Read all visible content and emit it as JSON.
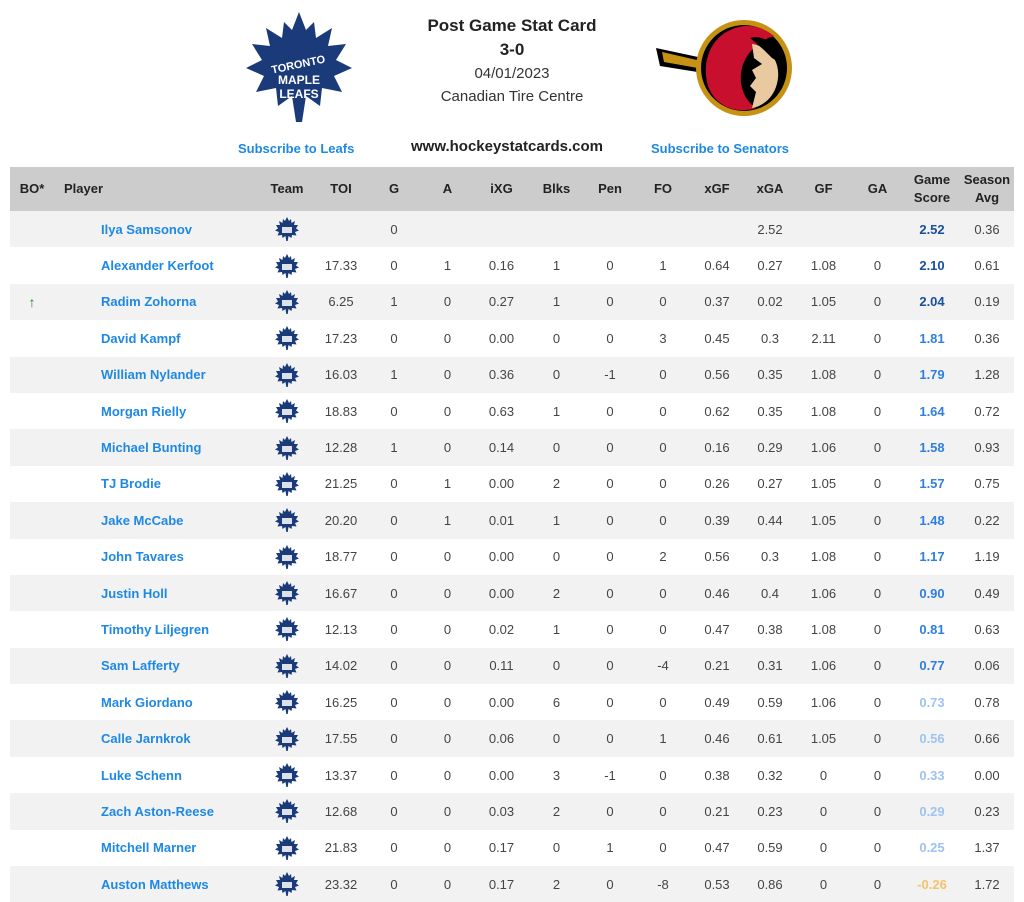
{
  "header": {
    "title": "Post Game Stat Card",
    "score": "3-0",
    "date": "04/01/2023",
    "venue": "Canadian Tire Centre",
    "site": "www.hockeystatcards.com",
    "subscribe_left": "Subscribe to Leafs",
    "subscribe_right": "Subscribe to Senators",
    "logo_left_text": [
      "TORONTO",
      "MAPLE",
      "LEAFS"
    ],
    "logo_left_color": "#1a3a7a",
    "logo_right_colors": [
      "#c8102e",
      "#000000",
      "#c69214"
    ]
  },
  "columns": [
    "BO*",
    "Player",
    "Team",
    "TOI",
    "G",
    "A",
    "iXG",
    "Blks",
    "Pen",
    "FO",
    "xGF",
    "xGA",
    "GF",
    "GA",
    "Game Score",
    "Season Avg"
  ],
  "colors": {
    "header_bg": "#cccccc",
    "link": "#1e88e5",
    "gs_strong": "#1a4fa0",
    "gs_medium": "#2f7fe0",
    "gs_light": "#9ec3f0",
    "gs_negative": "#f5c26b",
    "arrow_up": "#1a8a1a"
  },
  "rows": [
    {
      "bo": "",
      "player": "Ilya Samsonov",
      "team": "maple-leafs-icon",
      "toi": "",
      "g": "0",
      "a": "",
      "ixg": "",
      "blks": "",
      "pen": "",
      "fo": "",
      "xgf": "",
      "xga": "2.52",
      "gf": "",
      "ga": "",
      "gs": "2.52",
      "avg": "0.36",
      "gs_style": "strong"
    },
    {
      "bo": "",
      "player": "Alexander Kerfoot",
      "team": "maple-leafs-icon",
      "toi": "17.33",
      "g": "0",
      "a": "1",
      "ixg": "0.16",
      "blks": "1",
      "pen": "0",
      "fo": "1",
      "xgf": "0.64",
      "xga": "0.27",
      "gf": "1.08",
      "ga": "0",
      "gs": "2.10",
      "avg": "0.61",
      "gs_style": "strong"
    },
    {
      "bo": "↑",
      "player": "Radim Zohorna",
      "team": "maple-leafs-icon",
      "toi": "6.25",
      "g": "1",
      "a": "0",
      "ixg": "0.27",
      "blks": "1",
      "pen": "0",
      "fo": "0",
      "xgf": "0.37",
      "xga": "0.02",
      "gf": "1.05",
      "ga": "0",
      "gs": "2.04",
      "avg": "0.19",
      "gs_style": "strong"
    },
    {
      "bo": "",
      "player": "David Kampf",
      "team": "maple-leafs-icon",
      "toi": "17.23",
      "g": "0",
      "a": "0",
      "ixg": "0.00",
      "blks": "0",
      "pen": "0",
      "fo": "3",
      "xgf": "0.45",
      "xga": "0.3",
      "gf": "2.11",
      "ga": "0",
      "gs": "1.81",
      "avg": "0.36",
      "gs_style": "medium"
    },
    {
      "bo": "",
      "player": "William Nylander",
      "team": "maple-leafs-icon",
      "toi": "16.03",
      "g": "1",
      "a": "0",
      "ixg": "0.36",
      "blks": "0",
      "pen": "-1",
      "fo": "0",
      "xgf": "0.56",
      "xga": "0.35",
      "gf": "1.08",
      "ga": "0",
      "gs": "1.79",
      "avg": "1.28",
      "gs_style": "medium"
    },
    {
      "bo": "",
      "player": "Morgan Rielly",
      "team": "maple-leafs-icon",
      "toi": "18.83",
      "g": "0",
      "a": "0",
      "ixg": "0.63",
      "blks": "1",
      "pen": "0",
      "fo": "0",
      "xgf": "0.62",
      "xga": "0.35",
      "gf": "1.08",
      "ga": "0",
      "gs": "1.64",
      "avg": "0.72",
      "gs_style": "medium"
    },
    {
      "bo": "",
      "player": "Michael Bunting",
      "team": "maple-leafs-icon",
      "toi": "12.28",
      "g": "1",
      "a": "0",
      "ixg": "0.14",
      "blks": "0",
      "pen": "0",
      "fo": "0",
      "xgf": "0.16",
      "xga": "0.29",
      "gf": "1.06",
      "ga": "0",
      "gs": "1.58",
      "avg": "0.93",
      "gs_style": "medium"
    },
    {
      "bo": "",
      "player": "TJ Brodie",
      "team": "maple-leafs-icon",
      "toi": "21.25",
      "g": "0",
      "a": "1",
      "ixg": "0.00",
      "blks": "2",
      "pen": "0",
      "fo": "0",
      "xgf": "0.26",
      "xga": "0.27",
      "gf": "1.05",
      "ga": "0",
      "gs": "1.57",
      "avg": "0.75",
      "gs_style": "medium"
    },
    {
      "bo": "",
      "player": "Jake McCabe",
      "team": "maple-leafs-icon",
      "toi": "20.20",
      "g": "0",
      "a": "1",
      "ixg": "0.01",
      "blks": "1",
      "pen": "0",
      "fo": "0",
      "xgf": "0.39",
      "xga": "0.44",
      "gf": "1.05",
      "ga": "0",
      "gs": "1.48",
      "avg": "0.22",
      "gs_style": "medium"
    },
    {
      "bo": "",
      "player": "John Tavares",
      "team": "maple-leafs-icon",
      "toi": "18.77",
      "g": "0",
      "a": "0",
      "ixg": "0.00",
      "blks": "0",
      "pen": "0",
      "fo": "2",
      "xgf": "0.56",
      "xga": "0.3",
      "gf": "1.08",
      "ga": "0",
      "gs": "1.17",
      "avg": "1.19",
      "gs_style": "medium"
    },
    {
      "bo": "",
      "player": "Justin Holl",
      "team": "maple-leafs-icon",
      "toi": "16.67",
      "g": "0",
      "a": "0",
      "ixg": "0.00",
      "blks": "2",
      "pen": "0",
      "fo": "0",
      "xgf": "0.46",
      "xga": "0.4",
      "gf": "1.06",
      "ga": "0",
      "gs": "0.90",
      "avg": "0.49",
      "gs_style": "medium"
    },
    {
      "bo": "",
      "player": "Timothy Liljegren",
      "team": "maple-leafs-icon",
      "toi": "12.13",
      "g": "0",
      "a": "0",
      "ixg": "0.02",
      "blks": "1",
      "pen": "0",
      "fo": "0",
      "xgf": "0.47",
      "xga": "0.38",
      "gf": "1.08",
      "ga": "0",
      "gs": "0.81",
      "avg": "0.63",
      "gs_style": "medium"
    },
    {
      "bo": "",
      "player": "Sam Lafferty",
      "team": "maple-leafs-icon",
      "toi": "14.02",
      "g": "0",
      "a": "0",
      "ixg": "0.11",
      "blks": "0",
      "pen": "0",
      "fo": "-4",
      "xgf": "0.21",
      "xga": "0.31",
      "gf": "1.06",
      "ga": "0",
      "gs": "0.77",
      "avg": "0.06",
      "gs_style": "medium"
    },
    {
      "bo": "",
      "player": "Mark Giordano",
      "team": "maple-leafs-icon",
      "toi": "16.25",
      "g": "0",
      "a": "0",
      "ixg": "0.00",
      "blks": "6",
      "pen": "0",
      "fo": "0",
      "xgf": "0.49",
      "xga": "0.59",
      "gf": "1.06",
      "ga": "0",
      "gs": "0.73",
      "avg": "0.78",
      "gs_style": "light"
    },
    {
      "bo": "",
      "player": "Calle Jarnkrok",
      "team": "maple-leafs-icon",
      "toi": "17.55",
      "g": "0",
      "a": "0",
      "ixg": "0.06",
      "blks": "0",
      "pen": "0",
      "fo": "1",
      "xgf": "0.46",
      "xga": "0.61",
      "gf": "1.05",
      "ga": "0",
      "gs": "0.56",
      "avg": "0.66",
      "gs_style": "light"
    },
    {
      "bo": "",
      "player": "Luke Schenn",
      "team": "maple-leafs-icon",
      "toi": "13.37",
      "g": "0",
      "a": "0",
      "ixg": "0.00",
      "blks": "3",
      "pen": "-1",
      "fo": "0",
      "xgf": "0.38",
      "xga": "0.32",
      "gf": "0",
      "ga": "0",
      "gs": "0.33",
      "avg": "0.00",
      "gs_style": "light"
    },
    {
      "bo": "",
      "player": "Zach Aston-Reese",
      "team": "maple-leafs-icon",
      "toi": "12.68",
      "g": "0",
      "a": "0",
      "ixg": "0.03",
      "blks": "2",
      "pen": "0",
      "fo": "0",
      "xgf": "0.21",
      "xga": "0.23",
      "gf": "0",
      "ga": "0",
      "gs": "0.29",
      "avg": "0.23",
      "gs_style": "light"
    },
    {
      "bo": "",
      "player": "Mitchell Marner",
      "team": "maple-leafs-icon",
      "toi": "21.83",
      "g": "0",
      "a": "0",
      "ixg": "0.17",
      "blks": "0",
      "pen": "1",
      "fo": "0",
      "xgf": "0.47",
      "xga": "0.59",
      "gf": "0",
      "ga": "0",
      "gs": "0.25",
      "avg": "1.37",
      "gs_style": "light"
    },
    {
      "bo": "",
      "player": "Auston Matthews",
      "team": "maple-leafs-icon",
      "toi": "23.32",
      "g": "0",
      "a": "0",
      "ixg": "0.17",
      "blks": "2",
      "pen": "0",
      "fo": "-8",
      "xgf": "0.53",
      "xga": "0.86",
      "gf": "0",
      "ga": "0",
      "gs": "-0.26",
      "avg": "1.72",
      "gs_style": "negative"
    }
  ]
}
